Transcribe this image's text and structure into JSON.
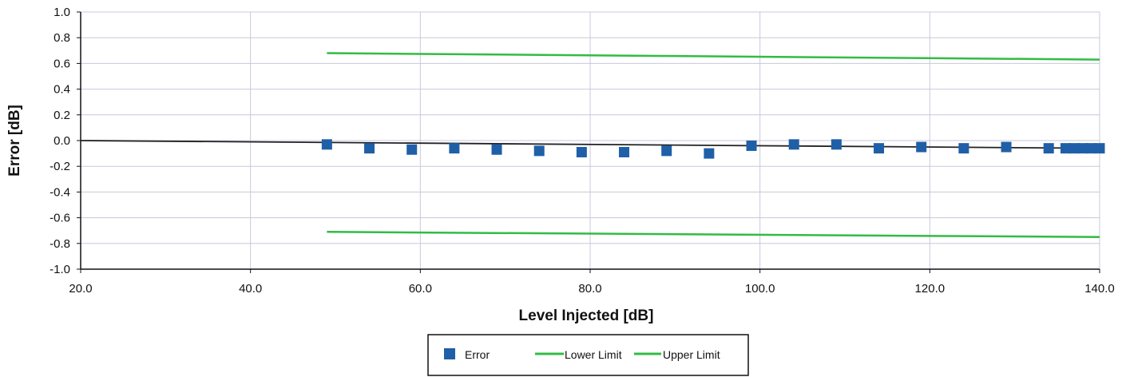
{
  "chart_data": {
    "type": "scatter",
    "title": "",
    "xlabel": "Level Injected [dB]",
    "ylabel": "Error [dB]",
    "xlim": [
      20,
      140
    ],
    "ylim": [
      -1.0,
      1.0
    ],
    "x_ticks": [
      "20.0",
      "40.0",
      "60.0",
      "80.0",
      "100.0",
      "120.0",
      "140.0"
    ],
    "y_ticks": [
      "1.0",
      "0.8",
      "0.6",
      "0.4",
      "0.2",
      "0.0",
      "-0.2",
      "-0.4",
      "-0.6",
      "-0.8",
      "-1.0"
    ],
    "grid": true,
    "legend_position": "bottom-center",
    "series": [
      {
        "name": "Error",
        "kind": "markers",
        "color": "#1f5fa8",
        "x": [
          49,
          54,
          59,
          64,
          69,
          74,
          79,
          84,
          89,
          94,
          99,
          104,
          109,
          114,
          119,
          124,
          129,
          134,
          136,
          137,
          138,
          139,
          140
        ],
        "y": [
          -0.03,
          -0.06,
          -0.07,
          -0.06,
          -0.07,
          -0.08,
          -0.09,
          -0.09,
          -0.08,
          -0.1,
          -0.04,
          -0.03,
          -0.03,
          -0.06,
          -0.05,
          -0.06,
          -0.05,
          -0.06,
          -0.06,
          -0.06,
          -0.06,
          -0.06,
          -0.06
        ]
      },
      {
        "name": "Lower Limit",
        "kind": "line",
        "color": "#33bb44",
        "x": [
          49,
          140
        ],
        "y": [
          -0.71,
          -0.75
        ]
      },
      {
        "name": "Upper Limit",
        "kind": "line",
        "color": "#33bb44",
        "x": [
          49,
          140
        ],
        "y": [
          0.68,
          0.63
        ]
      },
      {
        "kind": "line",
        "color": "#222222",
        "x": [
          20,
          140
        ],
        "y": [
          0.0,
          -0.06
        ]
      }
    ]
  }
}
